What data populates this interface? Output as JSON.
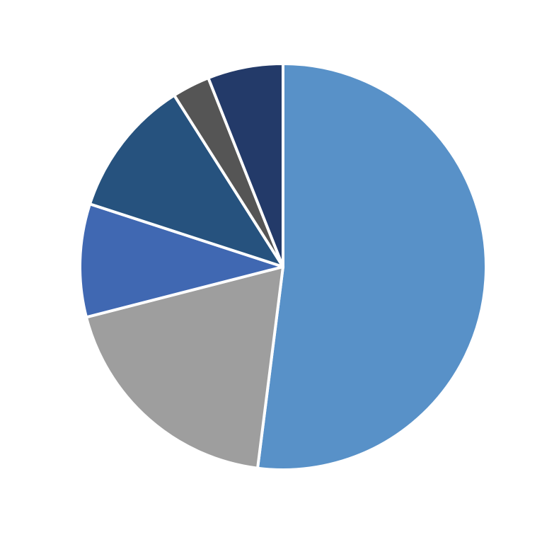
{
  "chart_data": {
    "type": "pie",
    "values": [
      52,
      19,
      9,
      11,
      3,
      6
    ],
    "colors": [
      "#5891c8",
      "#9e9e9e",
      "#4068b2",
      "#26527e",
      "#555555",
      "#233a69"
    ]
  }
}
